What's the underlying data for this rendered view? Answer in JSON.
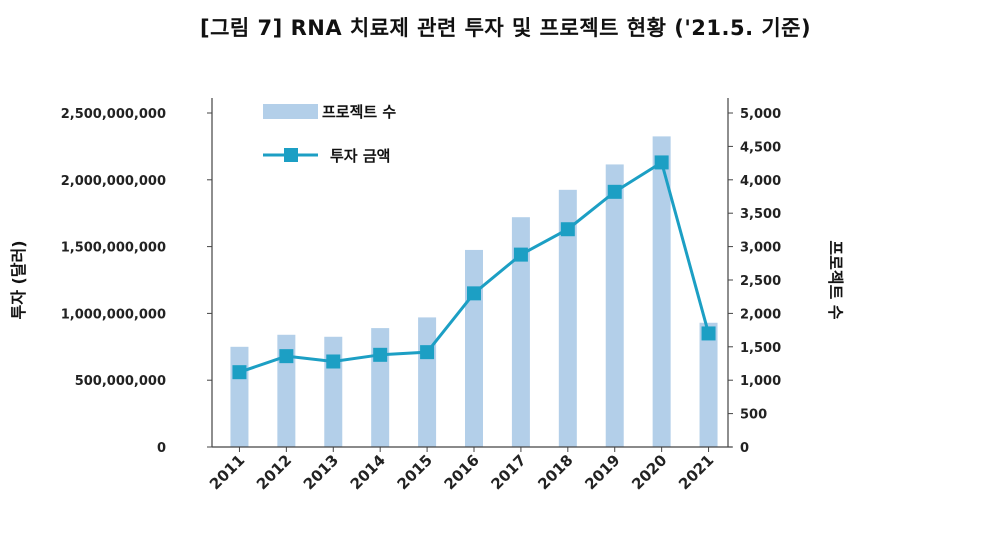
{
  "title": "[그림 7] RNA 치료제 관련 투자 및 프로젝트 현황 ('21.5. 기준)",
  "colors": {
    "bar": "#b3cfe9",
    "line": "#1c9fc4",
    "marker": "#1c9fc4",
    "axis": "#444444"
  },
  "chart_data": {
    "type": "bar+line",
    "categories": [
      "2011",
      "2012",
      "2013",
      "2014",
      "2015",
      "2016",
      "2017",
      "2018",
      "2019",
      "2020",
      "2021"
    ],
    "series": [
      {
        "name": "프로젝트 수",
        "kind": "bar",
        "axis": "right",
        "values": [
          1500,
          1680,
          1650,
          1780,
          1940,
          2950,
          3440,
          3850,
          4230,
          4650,
          1860
        ]
      },
      {
        "name": "투자 금액",
        "kind": "line",
        "axis": "left",
        "values": [
          560000000,
          680000000,
          640000000,
          690000000,
          710000000,
          1150000000,
          1440000000,
          1630000000,
          1910000000,
          2130000000,
          850000000
        ]
      }
    ],
    "ylabel_left": "투자 (달러)",
    "ylabel_right": "프로젝트 수",
    "ylim_left": [
      0,
      2500000000
    ],
    "ylim_right": [
      0,
      5000
    ],
    "yticks_left": [
      "0",
      "500,000,000",
      "1,000,000,000",
      "1,500,000,000",
      "2,000,000,000",
      "2,500,000,000"
    ],
    "yticks_right": [
      "0",
      "500",
      "1,000",
      "1,500",
      "2,000",
      "2,500",
      "3,000",
      "3,500",
      "4,000",
      "4,500",
      "5,000"
    ],
    "grid": false,
    "legend_position": "top-left"
  }
}
